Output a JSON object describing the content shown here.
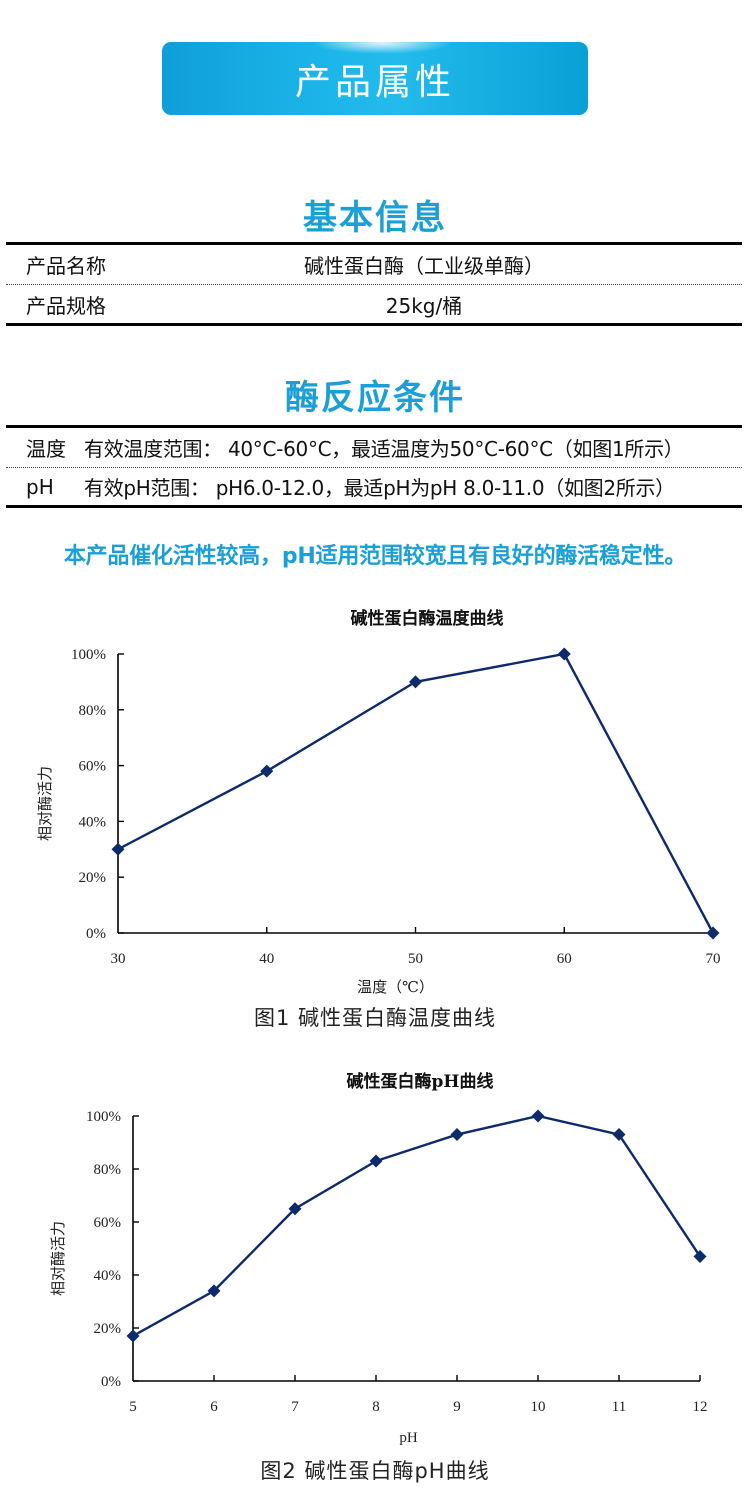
{
  "banner": {
    "title": "产品属性"
  },
  "basic_info": {
    "title": "基本信息",
    "rows": [
      {
        "label": "产品名称",
        "value": "碱性蛋白酶（工业级单酶）"
      },
      {
        "label": "产品规格",
        "value": "25kg/桶"
      }
    ]
  },
  "reaction_conditions": {
    "title": "酶反应条件",
    "rows": [
      {
        "label": "温度",
        "value": "有效温度范围： 40°C-60°C，最适温度为50°C-60°C（如图1所示）"
      },
      {
        "label": "pH",
        "value": "有效pH范围： pH6.0-12.0，最适pH为pH 8.0-11.0（如图2所示）"
      }
    ]
  },
  "highlight_text": "本产品催化活性较高，pH适用范围较宽且有良好的酶活稳定性。",
  "colors": {
    "accent": "#1a9fd6",
    "series": "#0d2a6b",
    "axis": "#000000"
  },
  "chart_data": [
    {
      "type": "line",
      "title": "碱性蛋白酶温度曲线",
      "xlabel": "温度（℃）",
      "ylabel": "相对酶活力",
      "x": [
        30,
        40,
        50,
        60,
        70
      ],
      "x_tick_labels": [
        "30",
        "40",
        "50",
        "60",
        "70"
      ],
      "y_tick_labels": [
        "0%",
        "20%",
        "40%",
        "60%",
        "80%",
        "100%"
      ],
      "series": [
        {
          "name": "相对酶活力",
          "values": [
            30,
            58,
            90,
            100,
            0
          ]
        }
      ],
      "ylim": [
        0,
        100
      ],
      "xlim": [
        30,
        70
      ],
      "grid": false,
      "legend": "none",
      "marker": "diamond",
      "caption": "图1 碱性蛋白酶温度曲线"
    },
    {
      "type": "line",
      "title": "碱性蛋白酶pH曲线",
      "xlabel": "pH",
      "ylabel": "相对酶活力",
      "x": [
        5,
        6,
        7,
        8,
        9,
        10,
        11,
        12
      ],
      "x_tick_labels": [
        "5",
        "6",
        "7",
        "8",
        "9",
        "10",
        "11",
        "12"
      ],
      "y_tick_labels": [
        "0%",
        "20%",
        "40%",
        "60%",
        "80%",
        "100%"
      ],
      "series": [
        {
          "name": "相对酶活力",
          "values": [
            17,
            34,
            65,
            83,
            93,
            100,
            93,
            47
          ]
        }
      ],
      "ylim": [
        0,
        100
      ],
      "xlim": [
        5,
        12
      ],
      "grid": false,
      "legend": "none",
      "marker": "diamond",
      "caption": "图2 碱性蛋白酶pH曲线"
    }
  ]
}
